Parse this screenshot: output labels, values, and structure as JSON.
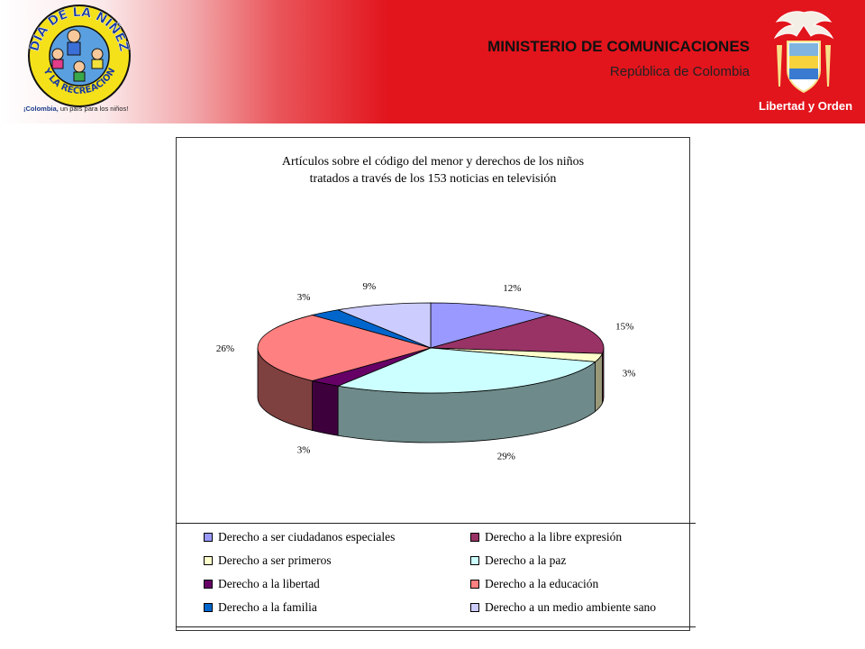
{
  "header": {
    "title": "MINISTERIO DE COMUNICACIONES",
    "subtitle": "República de Colombia",
    "logo_text_top": "DIA DE LA NIÑEZ",
    "logo_text_bottom": "Y LA RECREACION",
    "logo_caption_brand": "¡Colombia,",
    "logo_caption_rest": " un país para los niños!",
    "crest_motto": "Libertad y Orden"
  },
  "chart_data": {
    "type": "pie",
    "title": "Artículos sobre el código del menor y derechos de los niños",
    "subtitle": "tratados a través de los 153 noticias en televisión",
    "legend_position": "bottom",
    "slices": [
      {
        "name": "Derecho a ser ciudadanos especiales",
        "value": 12,
        "label": "12%",
        "color": "#9999ff"
      },
      {
        "name": "Derecho a la libre expresión",
        "value": 15,
        "label": "15%",
        "color": "#993366"
      },
      {
        "name": "Derecho a ser primeros",
        "value": 3,
        "label": "3%",
        "color": "#ffffcc"
      },
      {
        "name": "Derecho a la paz",
        "value": 29,
        "label": "29%",
        "color": "#ccffff"
      },
      {
        "name": "Derecho a la libertad",
        "value": 3,
        "label": "3%",
        "color": "#660066"
      },
      {
        "name": "Derecho a la educación",
        "value": 26,
        "label": "26%",
        "color": "#ff8080"
      },
      {
        "name": "Derecho a la familia",
        "value": 3,
        "label": "3%",
        "color": "#0066cc"
      },
      {
        "name": "Derecho a un medio ambiente sano",
        "value": 9,
        "label": "9%",
        "color": "#ccccff"
      }
    ],
    "side_colors": [
      "#5c5c99",
      "#5c1f3d",
      "#99997a",
      "#6e8a8a",
      "#3d003d",
      "#7f4040",
      "#003d7a",
      "#7a7a99"
    ]
  }
}
